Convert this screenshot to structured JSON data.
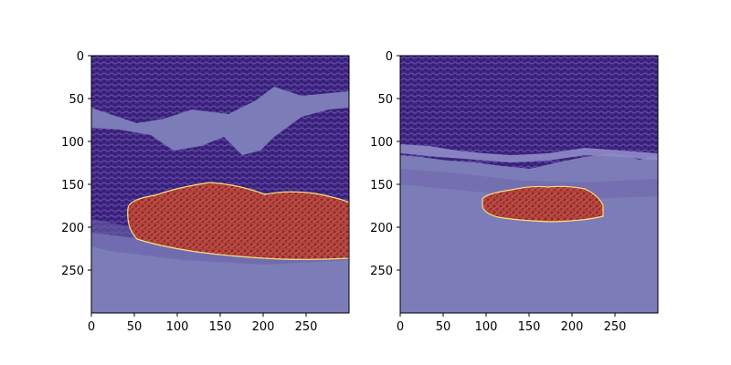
{
  "figure": {
    "panels": [
      {
        "id": "left",
        "x_ticks": [
          "0",
          "50",
          "100",
          "150",
          "200",
          "250"
        ],
        "y_ticks": [
          "0",
          "50",
          "100",
          "150",
          "200",
          "250"
        ]
      },
      {
        "id": "right",
        "x_ticks": [
          "0",
          "50",
          "100",
          "150",
          "200",
          "250"
        ],
        "y_ticks": [
          "0",
          "50",
          "100",
          "150",
          "200",
          "250"
        ]
      }
    ],
    "colors": {
      "tissue": "#4a2a8a",
      "tissue_dark": "#2f1a6a",
      "background_overlay": "#7c7cb8",
      "mask_red": "#c0392b",
      "mask_edge": "#f5e27a"
    }
  }
}
